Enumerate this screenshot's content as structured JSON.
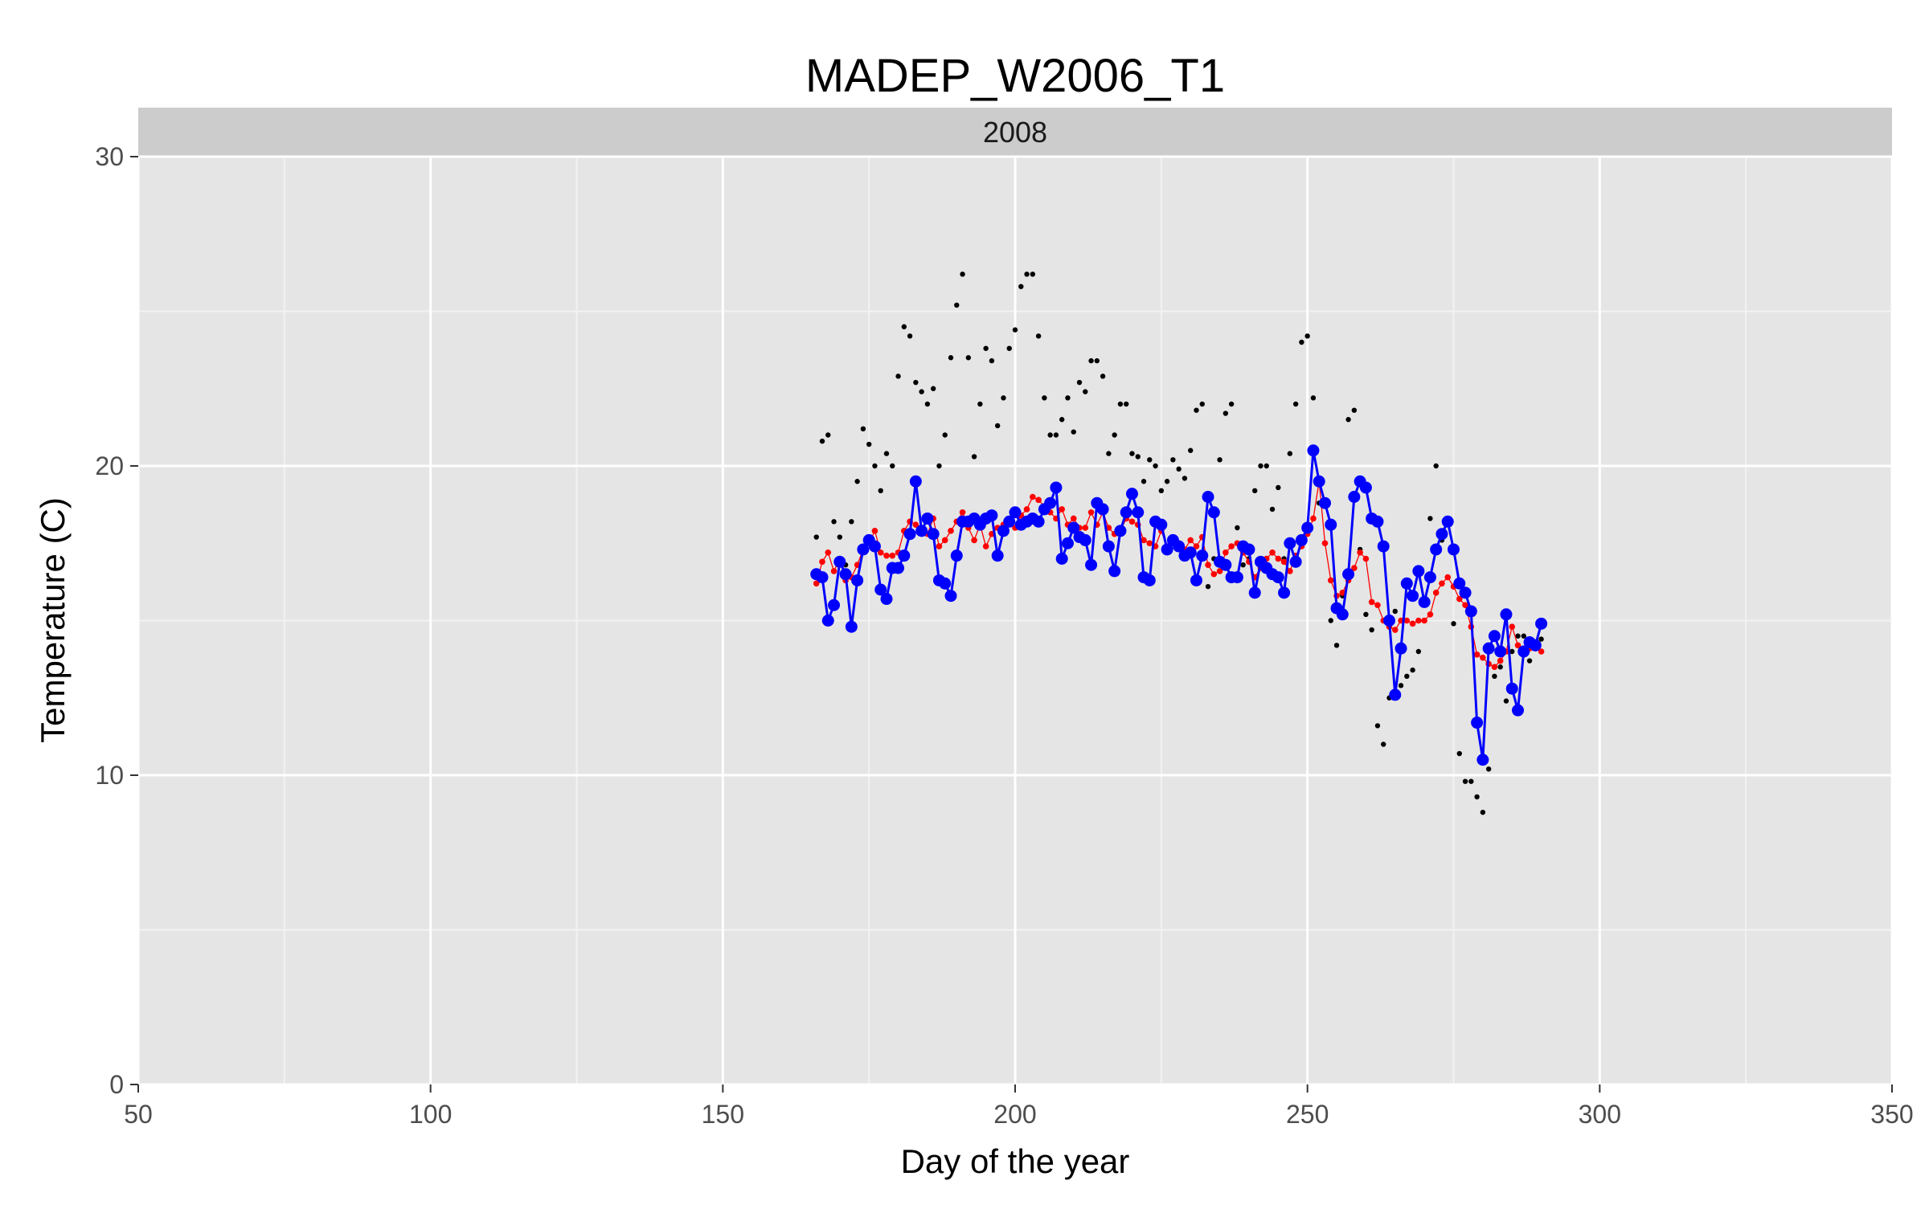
{
  "chart_data": {
    "type": "line",
    "title": "MADEP_W2006_T1",
    "facet_label": "2008",
    "xlabel": "Day of the year",
    "ylabel": "Temperature (C)",
    "xlim": [
      50,
      350
    ],
    "ylim": [
      0,
      30
    ],
    "x_ticks": [
      50,
      100,
      150,
      200,
      250,
      300,
      350
    ],
    "y_ticks": [
      0,
      10,
      20,
      30
    ],
    "grid": true,
    "legend": "none",
    "colors": {
      "panel": "#e5e5e5",
      "strip": "#cccccc",
      "grid_major": "#ffffff",
      "grid_minor": "#f2f2f2",
      "mean_series": "#0000ff",
      "smoothed_series": "#ff0000",
      "daily_points": "#000000"
    },
    "series": [
      {
        "style": "line-points",
        "color": "#0000ff",
        "x": [
          166,
          167,
          168,
          169,
          170,
          171,
          172,
          173,
          174,
          175,
          176,
          177,
          178,
          179,
          180,
          181,
          182,
          183,
          184,
          185,
          186,
          187,
          188,
          189,
          190,
          191,
          192,
          193,
          194,
          195,
          196,
          197,
          198,
          199,
          200,
          201,
          202,
          203,
          204,
          205,
          206,
          207,
          208,
          209,
          210,
          211,
          212,
          213,
          214,
          215,
          216,
          217,
          218,
          219,
          220,
          221,
          222,
          223,
          224,
          225,
          226,
          227,
          228,
          229,
          230,
          231,
          232,
          233,
          234,
          235,
          236,
          237,
          238,
          239,
          240,
          241,
          242,
          243,
          244,
          245,
          246,
          247,
          248,
          249,
          250,
          251,
          252,
          253,
          254,
          255,
          256,
          257,
          258,
          259,
          260,
          261,
          262,
          263,
          264,
          265,
          266,
          267,
          268,
          269,
          270,
          271,
          272,
          273,
          274,
          275,
          276,
          277,
          278,
          279,
          280,
          281,
          282,
          283,
          284,
          285,
          286,
          287,
          288,
          289,
          290
        ],
        "y": [
          16.5,
          16.4,
          15.0,
          15.5,
          16.9,
          16.5,
          14.8,
          16.3,
          17.3,
          17.6,
          17.4,
          16.0,
          15.7,
          16.7,
          16.7,
          17.1,
          17.8,
          19.5,
          17.9,
          18.3,
          17.8,
          16.3,
          16.2,
          15.8,
          17.1,
          18.2,
          18.2,
          18.3,
          18.1,
          18.3,
          18.4,
          17.1,
          17.9,
          18.2,
          18.5,
          18.1,
          18.2,
          18.3,
          18.2,
          18.6,
          18.8,
          19.3,
          17.0,
          17.5,
          18.0,
          17.7,
          17.6,
          16.8,
          18.8,
          18.6,
          17.4,
          16.6,
          17.9,
          18.5,
          19.1,
          18.5,
          16.4,
          16.3,
          18.2,
          18.1,
          17.3,
          17.6,
          17.4,
          17.1,
          17.2,
          16.3,
          17.1,
          19.0,
          18.5,
          16.9,
          16.8,
          16.4,
          16.4,
          17.4,
          17.3,
          15.9,
          16.9,
          16.7,
          16.5,
          16.4,
          15.9,
          17.5,
          16.9,
          17.6,
          18.0,
          20.5,
          19.5,
          18.8,
          18.1,
          15.4,
          15.2,
          16.5,
          19.0,
          19.5,
          19.3,
          18.3,
          18.2,
          17.4,
          15.0,
          12.6,
          14.1,
          16.2,
          15.8,
          16.6,
          15.6,
          16.4,
          17.3,
          17.8,
          18.2,
          17.3,
          16.2,
          15.9,
          15.3,
          11.7,
          10.5,
          14.1,
          14.5,
          14.0,
          15.2,
          12.8,
          12.1,
          14.0,
          14.3,
          14.2,
          14.9
        ]
      },
      {
        "style": "line-points",
        "color": "#ff0000",
        "x": [
          166,
          167,
          168,
          169,
          170,
          171,
          172,
          173,
          174,
          175,
          176,
          177,
          178,
          179,
          180,
          181,
          182,
          183,
          184,
          185,
          186,
          187,
          188,
          189,
          190,
          191,
          192,
          193,
          194,
          195,
          196,
          197,
          198,
          199,
          200,
          201,
          202,
          203,
          204,
          205,
          206,
          207,
          208,
          209,
          210,
          211,
          212,
          213,
          214,
          215,
          216,
          217,
          218,
          219,
          220,
          221,
          222,
          223,
          224,
          225,
          226,
          227,
          228,
          229,
          230,
          231,
          232,
          233,
          234,
          235,
          236,
          237,
          238,
          239,
          240,
          241,
          242,
          243,
          244,
          245,
          246,
          247,
          248,
          249,
          250,
          251,
          252,
          253,
          254,
          255,
          256,
          257,
          258,
          259,
          260,
          261,
          262,
          263,
          264,
          265,
          266,
          267,
          268,
          269,
          270,
          271,
          272,
          273,
          274,
          275,
          276,
          277,
          278,
          279,
          280,
          281,
          282,
          283,
          284,
          285,
          286,
          287,
          288,
          289,
          290
        ],
        "y": [
          16.2,
          16.9,
          17.2,
          16.6,
          17.0,
          16.3,
          16.4,
          16.8,
          17.3,
          17.5,
          17.9,
          17.2,
          17.1,
          17.1,
          17.2,
          17.9,
          18.2,
          18.1,
          17.9,
          17.8,
          18.3,
          17.4,
          17.6,
          17.9,
          18.2,
          18.5,
          18.0,
          17.6,
          18.1,
          17.4,
          17.8,
          18.0,
          18.1,
          18.2,
          18.0,
          18.4,
          18.6,
          19.0,
          18.9,
          18.7,
          18.5,
          18.3,
          18.6,
          18.1,
          18.3,
          18.0,
          18.0,
          18.5,
          18.1,
          18.5,
          18.0,
          17.8,
          17.9,
          18.3,
          18.2,
          18.1,
          17.6,
          17.5,
          17.4,
          17.9,
          17.4,
          17.5,
          17.5,
          17.3,
          17.6,
          17.4,
          17.7,
          16.8,
          16.5,
          16.6,
          17.2,
          17.4,
          17.5,
          17.2,
          16.9,
          16.4,
          16.7,
          17.0,
          17.2,
          17.0,
          16.9,
          16.6,
          17.1,
          17.4,
          17.8,
          18.3,
          19.5,
          17.5,
          16.3,
          15.8,
          15.9,
          16.3,
          16.7,
          17.2,
          17.0,
          15.6,
          15.5,
          15.0,
          14.8,
          14.7,
          15.0,
          15.0,
          14.9,
          15.0,
          15.0,
          15.2,
          15.9,
          16.2,
          16.4,
          16.1,
          15.7,
          15.5,
          14.8,
          13.9,
          13.8,
          13.6,
          13.5,
          13.7,
          14.0,
          14.8,
          14.2,
          13.9,
          14.1,
          14.1,
          14.0
        ]
      },
      {
        "style": "points",
        "color": "#000000",
        "x": [
          166,
          167,
          168,
          169,
          170,
          171,
          172,
          173,
          174,
          175,
          176,
          177,
          178,
          179,
          180,
          181,
          182,
          183,
          184,
          185,
          186,
          187,
          188,
          189,
          190,
          191,
          192,
          193,
          194,
          195,
          196,
          197,
          198,
          199,
          200,
          201,
          202,
          203,
          204,
          205,
          206,
          207,
          208,
          209,
          210,
          211,
          212,
          213,
          214,
          215,
          216,
          217,
          218,
          219,
          220,
          221,
          222,
          223,
          224,
          225,
          226,
          227,
          228,
          229,
          230,
          231,
          232,
          233,
          234,
          235,
          236,
          237,
          238,
          239,
          240,
          241,
          242,
          243,
          244,
          245,
          246,
          247,
          248,
          249,
          250,
          251,
          252,
          253,
          254,
          255,
          256,
          257,
          258,
          259,
          260,
          261,
          262,
          263,
          264,
          265,
          266,
          267,
          268,
          269,
          270,
          271,
          272,
          273,
          274,
          275,
          276,
          277,
          278,
          279,
          280,
          281,
          282,
          283,
          284,
          285,
          286,
          287,
          288,
          289,
          290
        ],
        "y": [
          17.7,
          20.8,
          21.0,
          18.2,
          17.7,
          16.8,
          18.2,
          19.5,
          21.2,
          20.7,
          20.0,
          19.2,
          20.4,
          20.0,
          22.9,
          24.5,
          24.2,
          22.7,
          22.4,
          22.0,
          22.5,
          20.0,
          21.0,
          23.5,
          25.2,
          26.2,
          23.5,
          20.3,
          22.0,
          23.8,
          23.4,
          21.3,
          22.2,
          23.8,
          24.4,
          25.8,
          26.2,
          26.2,
          24.2,
          22.2,
          21.0,
          21.0,
          21.5,
          22.2,
          21.1,
          22.7,
          22.4,
          23.4,
          23.4,
          22.9,
          20.4,
          21.0,
          22.0,
          22.0,
          20.4,
          20.3,
          19.5,
          20.2,
          20.0,
          19.2,
          19.5,
          20.2,
          19.9,
          19.6,
          20.5,
          21.8,
          22.0,
          16.1,
          17.0,
          20.2,
          21.7,
          22.0,
          18.0,
          16.8,
          17.0,
          19.2,
          20.0,
          20.0,
          18.6,
          19.3,
          17.0,
          20.4,
          22.0,
          24.0,
          24.2,
          22.2,
          18.8,
          18.8,
          15.0,
          14.2,
          15.8,
          21.5,
          21.8,
          17.3,
          15.2,
          14.7,
          11.6,
          11.0,
          12.5,
          15.3,
          12.9,
          13.2,
          13.4,
          14.0,
          15.7,
          18.3,
          20.0,
          17.6,
          18.1,
          14.9,
          10.7,
          9.8,
          9.8,
          9.3,
          8.8,
          10.2,
          13.2,
          13.5,
          12.4,
          14.0,
          14.5,
          14.5,
          13.7,
          14.1,
          14.4
        ]
      }
    ]
  }
}
